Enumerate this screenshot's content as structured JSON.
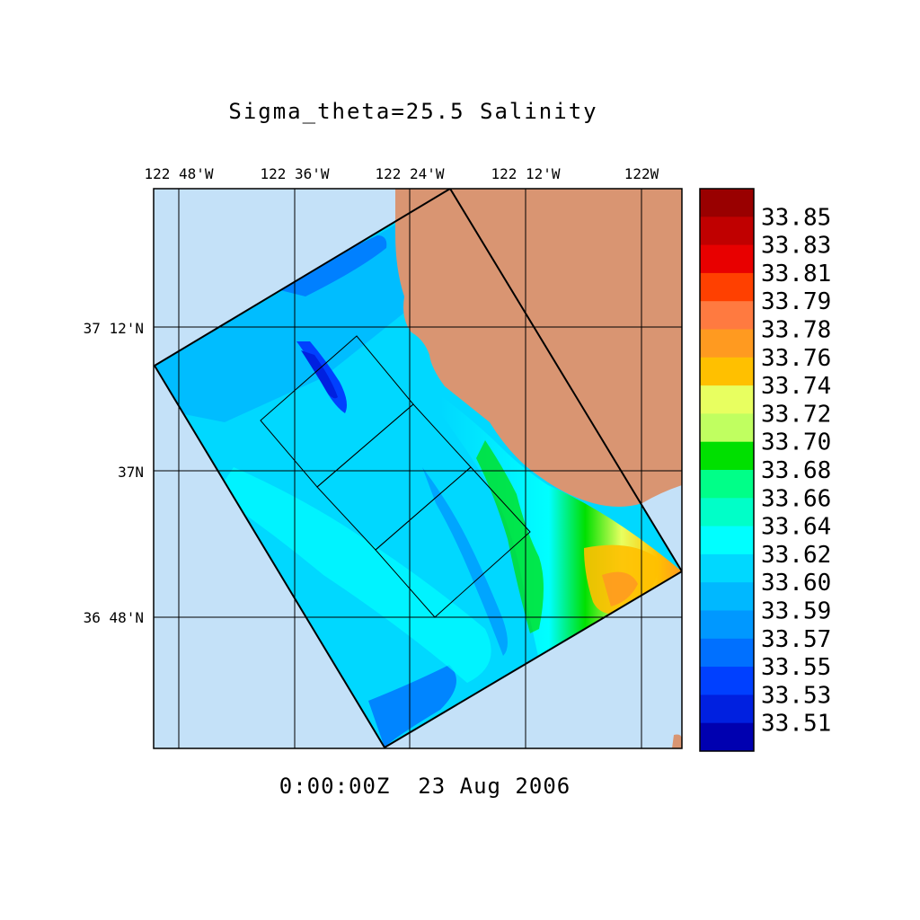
{
  "title": "Sigma_theta=25.5 Salinity",
  "timestamp": "0:00:00Z  23 Aug 2006",
  "lon_labels": [
    "122 48'W",
    "122 36'W",
    "122 24'W",
    "122 12'W",
    "122W"
  ],
  "lat_labels": [
    "37 12'N",
    "37N",
    "36 48'N"
  ],
  "colors": {
    "ocean_background": "#c4e1f8",
    "land": "#d99572",
    "frame": "#000000"
  },
  "colorbar": {
    "labels": [
      "33.85",
      "33.83",
      "33.81",
      "33.79",
      "33.78",
      "33.76",
      "33.74",
      "33.72",
      "33.70",
      "33.68",
      "33.66",
      "33.64",
      "33.62",
      "33.60",
      "33.59",
      "33.57",
      "33.55",
      "33.53",
      "33.51"
    ],
    "colors": [
      "#990000",
      "#c00000",
      "#e80000",
      "#ff4000",
      "#ff7a40",
      "#ff9a20",
      "#ffc000",
      "#e8ff60",
      "#c0ff60",
      "#00e000",
      "#00ff88",
      "#00ffc8",
      "#00ffff",
      "#00d8ff",
      "#00b8ff",
      "#0098ff",
      "#0070ff",
      "#0040ff",
      "#0020e0",
      "#0000b0"
    ]
  },
  "legend_icons": {
    "compass": "none"
  }
}
